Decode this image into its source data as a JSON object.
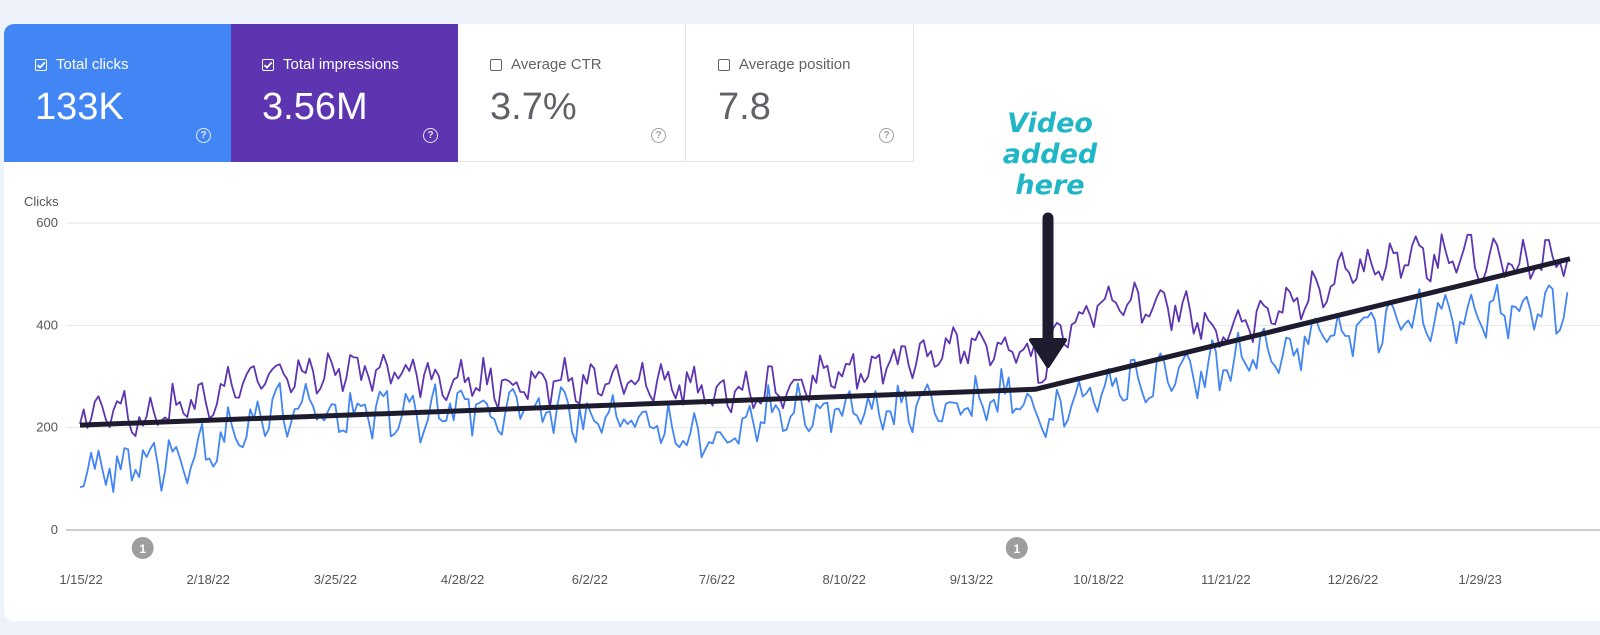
{
  "metrics": [
    {
      "label": "Total clicks",
      "value": "133K",
      "checked": true,
      "color": "#4285f4"
    },
    {
      "label": "Total impressions",
      "value": "3.56M",
      "checked": true,
      "color": "#5e35b1"
    },
    {
      "label": "Average CTR",
      "value": "3.7%",
      "checked": false,
      "color": "#ffffff"
    },
    {
      "label": "Average position",
      "value": "7.8",
      "checked": false,
      "color": "#ffffff"
    }
  ],
  "annotation": {
    "lines": [
      "Video",
      "added",
      "here"
    ],
    "color": "#1fb6c6"
  },
  "chart_data": {
    "type": "line",
    "ylabel": "Clicks",
    "ylim": [
      0,
      600
    ],
    "yticks": [
      0,
      200,
      400,
      600
    ],
    "grid": true,
    "x_tick_labels": [
      "1/15/22",
      "2/18/22",
      "3/25/22",
      "4/28/22",
      "6/2/22",
      "7/6/22",
      "8/10/22",
      "9/13/22",
      "10/18/22",
      "11/21/22",
      "12/26/22",
      "1/29/23"
    ],
    "x_range": [
      "1/15/22",
      "2/23/23"
    ],
    "event_markers": [
      {
        "date": "2/1/22",
        "label": "1"
      },
      {
        "date": "9/26/22",
        "label": "1"
      }
    ],
    "series": [
      {
        "key": "clicks",
        "color": "#4285f4",
        "x": [
          "1/15/22",
          "2/1/22",
          "2/18/22",
          "3/8/22",
          "3/25/22",
          "4/11/22",
          "4/28/22",
          "5/15/22",
          "6/2/22",
          "6/19/22",
          "7/6/22",
          "7/23/22",
          "8/10/22",
          "8/27/22",
          "9/13/22",
          "9/26/22",
          "10/2/22",
          "10/18/22",
          "11/4/22",
          "11/21/22",
          "12/8/22",
          "12/26/22",
          "1/12/23",
          "1/29/23",
          "2/23/23"
        ],
        "y": [
          115,
          130,
          160,
          225,
          235,
          230,
          240,
          235,
          225,
          200,
          175,
          235,
          240,
          235,
          240,
          265,
          205,
          280,
          290,
          315,
          355,
          395,
          420,
          430,
          430
        ]
      },
      {
        "key": "impressions",
        "color": "#5e35b1",
        "x": [
          "1/15/22",
          "2/1/22",
          "2/18/22",
          "3/8/22",
          "3/25/22",
          "4/11/22",
          "4/28/22",
          "5/15/22",
          "6/2/22",
          "6/19/22",
          "7/6/22",
          "7/23/22",
          "8/10/22",
          "8/27/22",
          "9/13/22",
          "9/26/22",
          "10/2/22",
          "10/18/22",
          "11/4/22",
          "11/21/22",
          "12/8/22",
          "12/26/22",
          "1/12/23",
          "1/29/23",
          "2/23/23"
        ],
        "y": [
          235,
          225,
          255,
          300,
          315,
          305,
          295,
          280,
          290,
          300,
          265,
          280,
          310,
          330,
          360,
          340,
          325,
          450,
          440,
          395,
          430,
          505,
          530,
          530,
          520
        ]
      },
      {
        "key": "trend",
        "color": "#1c1c2e",
        "x": [
          "1/15/22",
          "10/1/22",
          "2/23/23"
        ],
        "y": [
          205,
          275,
          530
        ]
      }
    ]
  }
}
